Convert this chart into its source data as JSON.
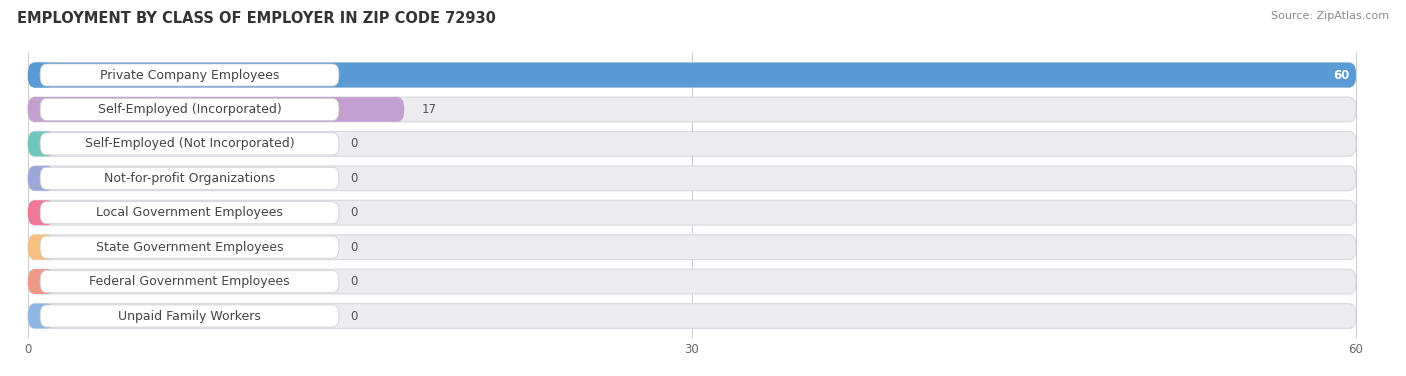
{
  "title": "EMPLOYMENT BY CLASS OF EMPLOYER IN ZIP CODE 72930",
  "source": "Source: ZipAtlas.com",
  "categories": [
    "Private Company Employees",
    "Self-Employed (Incorporated)",
    "Self-Employed (Not Incorporated)",
    "Not-for-profit Organizations",
    "Local Government Employees",
    "State Government Employees",
    "Federal Government Employees",
    "Unpaid Family Workers"
  ],
  "values": [
    60,
    17,
    0,
    0,
    0,
    0,
    0,
    0
  ],
  "bar_colors": [
    "#5b9bd5",
    "#c4a0d0",
    "#6ec6be",
    "#9da8d8",
    "#f07898",
    "#f8c080",
    "#f09888",
    "#8cb8e0"
  ],
  "xlim_max": 60,
  "xticks": [
    0,
    30,
    60
  ],
  "bg_color": "#ffffff",
  "bar_bg_color": "#ebebf0",
  "bar_bg_edge_color": "#d8d8e0",
  "title_fontsize": 10.5,
  "label_fontsize": 9,
  "value_fontsize": 8.5,
  "source_fontsize": 8
}
